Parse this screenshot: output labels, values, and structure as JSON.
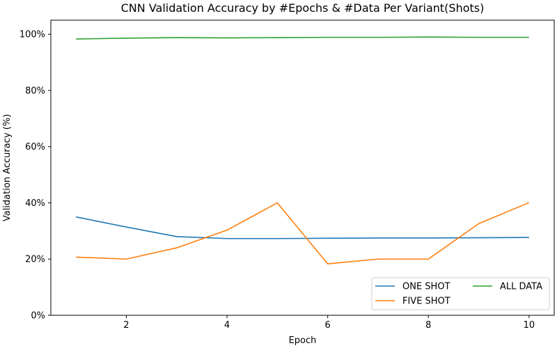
{
  "chart_data": {
    "type": "line",
    "title": "CNN Validation Accuracy by #Epochs & #Data Per Variant(Shots)",
    "xlabel": "Epoch",
    "ylabel": "Validation Accuracy (%)",
    "x": [
      1,
      2,
      3,
      4,
      5,
      6,
      7,
      8,
      9,
      10
    ],
    "xlim": [
      0.5,
      10.5
    ],
    "ylim": [
      0,
      1.05
    ],
    "xticks": [
      2,
      4,
      6,
      8,
      10
    ],
    "xtick_labels": [
      "2",
      "4",
      "6",
      "8",
      "10"
    ],
    "yticks": [
      0,
      0.2,
      0.4,
      0.6,
      0.8,
      1.0
    ],
    "ytick_labels": [
      "0%",
      "20%",
      "40%",
      "60%",
      "80%",
      "100%"
    ],
    "grid": false,
    "legend_position": "bottom-right",
    "legend_columns": 2,
    "series": [
      {
        "name": "ONE SHOT",
        "color": "#1f77b4",
        "values": [
          0.35,
          0.314,
          0.28,
          0.273,
          0.273,
          0.274,
          0.275,
          0.275,
          0.276,
          0.277
        ]
      },
      {
        "name": "FIVE SHOT",
        "color": "#ff7f0e",
        "values": [
          0.207,
          0.2,
          0.24,
          0.303,
          0.4,
          0.183,
          0.2,
          0.2,
          0.326,
          0.401
        ]
      },
      {
        "name": "ALL DATA",
        "color": "#2ca02c",
        "values": [
          0.983,
          0.986,
          0.988,
          0.987,
          0.988,
          0.989,
          0.989,
          0.99,
          0.989,
          0.989
        ]
      }
    ]
  }
}
